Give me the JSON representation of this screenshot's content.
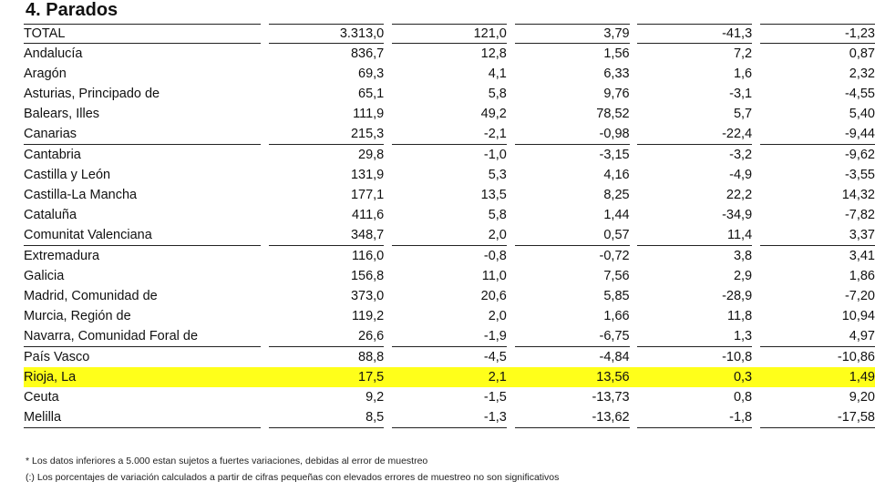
{
  "title": "4. Parados",
  "rows": [
    {
      "region": "TOTAL",
      "v1": "3.313,0",
      "v2": "121,0",
      "v3": "3,79",
      "v4": "-41,3",
      "v5": "-1,23"
    },
    {
      "region": "Andalucía",
      "v1": "836,7",
      "v2": "12,8",
      "v3": "1,56",
      "v4": "7,2",
      "v5": "0,87"
    },
    {
      "region": "Aragón",
      "v1": "69,3",
      "v2": "4,1",
      "v3": "6,33",
      "v4": "1,6",
      "v5": "2,32"
    },
    {
      "region": "Asturias, Principado de",
      "v1": "65,1",
      "v2": "5,8",
      "v3": "9,76",
      "v4": "-3,1",
      "v5": "-4,55"
    },
    {
      "region": "Balears, Illes",
      "v1": "111,9",
      "v2": "49,2",
      "v3": "78,52",
      "v4": "5,7",
      "v5": "5,40"
    },
    {
      "region": "Canarias",
      "v1": "215,3",
      "v2": "-2,1",
      "v3": "-0,98",
      "v4": "-22,4",
      "v5": "-9,44"
    },
    {
      "region": "Cantabria",
      "v1": "29,8",
      "v2": "-1,0",
      "v3": "-3,15",
      "v4": "-3,2",
      "v5": "-9,62"
    },
    {
      "region": "Castilla y León",
      "v1": "131,9",
      "v2": "5,3",
      "v3": "4,16",
      "v4": "-4,9",
      "v5": "-3,55"
    },
    {
      "region": "Castilla-La Mancha",
      "v1": "177,1",
      "v2": "13,5",
      "v3": "8,25",
      "v4": "22,2",
      "v5": "14,32"
    },
    {
      "region": "Cataluña",
      "v1": "411,6",
      "v2": "5,8",
      "v3": "1,44",
      "v4": "-34,9",
      "v5": "-7,82"
    },
    {
      "region": "Comunitat Valenciana",
      "v1": "348,7",
      "v2": "2,0",
      "v3": "0,57",
      "v4": "11,4",
      "v5": "3,37"
    },
    {
      "region": "Extremadura",
      "v1": "116,0",
      "v2": "-0,8",
      "v3": "-0,72",
      "v4": "3,8",
      "v5": "3,41"
    },
    {
      "region": "Galicia",
      "v1": "156,8",
      "v2": "11,0",
      "v3": "7,56",
      "v4": "2,9",
      "v5": "1,86"
    },
    {
      "region": "Madrid, Comunidad de",
      "v1": "373,0",
      "v2": "20,6",
      "v3": "5,85",
      "v4": "-28,9",
      "v5": "-7,20"
    },
    {
      "region": "Murcia, Región de",
      "v1": "119,2",
      "v2": "2,0",
      "v3": "1,66",
      "v4": "11,8",
      "v5": "10,94"
    },
    {
      "region": "Navarra, Comunidad Foral de",
      "v1": "26,6",
      "v2": "-1,9",
      "v3": "-6,75",
      "v4": "1,3",
      "v5": "4,97"
    },
    {
      "region": "País Vasco",
      "v1": "88,8",
      "v2": "-4,5",
      "v3": "-4,84",
      "v4": "-10,8",
      "v5": "-10,86"
    },
    {
      "region": "Rioja, La",
      "v1": "17,5",
      "v2": "2,1",
      "v3": "13,56",
      "v4": "0,3",
      "v5": "1,49"
    },
    {
      "region": "Ceuta",
      "v1": "9,2",
      "v2": "-1,5",
      "v3": "-13,73",
      "v4": "0,8",
      "v5": "9,20"
    },
    {
      "region": "Melilla",
      "v1": "8,5",
      "v2": "-1,3",
      "v3": "-13,62",
      "v4": "-1,8",
      "v5": "-17,58"
    }
  ],
  "highlight_color": "#ffff1a",
  "notes": [
    "* Los datos inferiores a 5.000 estan sujetos a fuertes variaciones, debidas al error de muestreo",
    "(:) Los porcentajes de variación calculados a partir de cifras pequeñas con elevados errores de muestreo no son significativos"
  ]
}
